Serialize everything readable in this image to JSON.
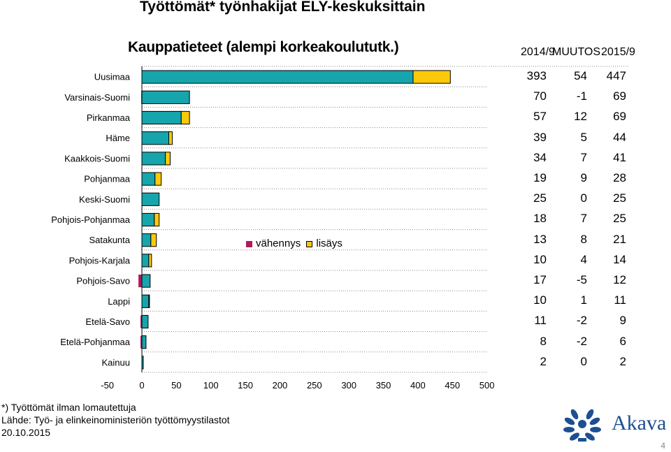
{
  "title": "Työttömät* työnhakijat ELY-keskuksittain",
  "subtitle": "Kauppatieteet (alempi korkeakoulututk.)",
  "colors": {
    "base": "#16a5ac",
    "increase": "#fcc90a",
    "decrease": "#b21a5c",
    "outline": "#000000"
  },
  "legend": {
    "decrease_label": "vähennys",
    "increase_label": "lisäys"
  },
  "table": {
    "headers": [
      "2014/9",
      "MUUTOS",
      "2015/9"
    ]
  },
  "chart_data": {
    "type": "bar",
    "orientation": "horizontal",
    "stacked": true,
    "categories": [
      "Uusimaa",
      "Varsinais-Suomi",
      "Pirkanmaa",
      "Häme",
      "Kaakkois-Suomi",
      "Pohjanmaa",
      "Keski-Suomi",
      "Pohjois-Pohjanmaa",
      "Satakunta",
      "Pohjois-Karjala",
      "Pohjois-Savo",
      "Lappi",
      "Etelä-Savo",
      "Etelä-Pohjanmaa",
      "Kainuu"
    ],
    "y2014": [
      393,
      70,
      57,
      39,
      34,
      19,
      25,
      18,
      13,
      10,
      17,
      10,
      11,
      8,
      2
    ],
    "change": [
      54,
      -1,
      12,
      5,
      7,
      9,
      0,
      7,
      8,
      4,
      -5,
      1,
      -2,
      -2,
      0
    ],
    "y2015": [
      447,
      69,
      69,
      44,
      41,
      28,
      25,
      25,
      21,
      14,
      12,
      11,
      9,
      6,
      2
    ],
    "series": [
      {
        "name": "vähennys",
        "values": [
          0,
          -1,
          0,
          0,
          0,
          0,
          0,
          0,
          0,
          0,
          -5,
          0,
          -2,
          -2,
          0
        ]
      },
      {
        "name": "lisäys",
        "values": [
          54,
          0,
          12,
          5,
          7,
          9,
          0,
          7,
          8,
          4,
          0,
          1,
          0,
          0,
          0
        ]
      }
    ],
    "xlim": [
      -50,
      500
    ],
    "xticks": [
      "-50",
      "0",
      "50",
      "100",
      "150",
      "200",
      "250",
      "300",
      "350",
      "400",
      "450",
      "500"
    ],
    "grid": "horizontal dotted"
  },
  "footer": {
    "note": "*) Työttömät ilman lomautettuja",
    "source": "Lähde: Työ- ja elinkeinoministeriön työttömyystilastot",
    "date": "20.10.2015"
  },
  "logo": {
    "text": "Akava"
  },
  "page_number": "4"
}
